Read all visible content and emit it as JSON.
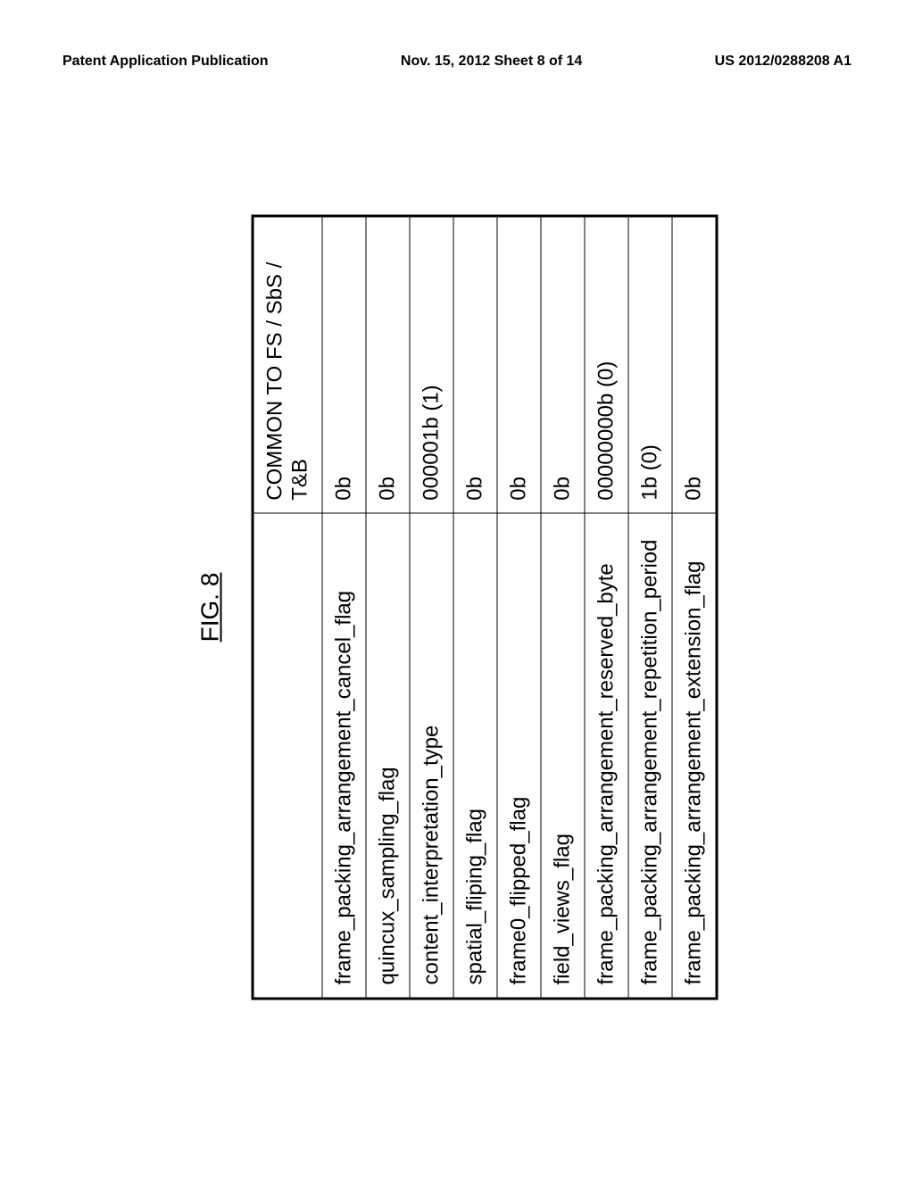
{
  "header": {
    "left": "Patent Application Publication",
    "center": "Nov. 15, 2012  Sheet 8 of 14",
    "right": "US 2012/0288208 A1"
  },
  "figure": {
    "label": "FIG. 8",
    "table": {
      "columns": [
        "",
        "COMMON TO FS / SbS / T&B"
      ],
      "rows": [
        [
          "frame_packing_arrangement_cancel_flag",
          "0b"
        ],
        [
          "quincux_sampling_flag",
          "0b"
        ],
        [
          "content_interpretation_type",
          "000001b (1)"
        ],
        [
          "spatial_fliping_flag",
          "0b"
        ],
        [
          "frame0_flipped_flag",
          "0b"
        ],
        [
          "field_views_flag",
          "0b"
        ],
        [
          "frame_packing_arrangement_reserved_byte",
          "00000000b (0)"
        ],
        [
          "frame_packing_arrangement_repetition_period",
          "1b (0)"
        ],
        [
          "frame_packing_arrangement_extension_flag",
          "0b"
        ]
      ]
    }
  }
}
